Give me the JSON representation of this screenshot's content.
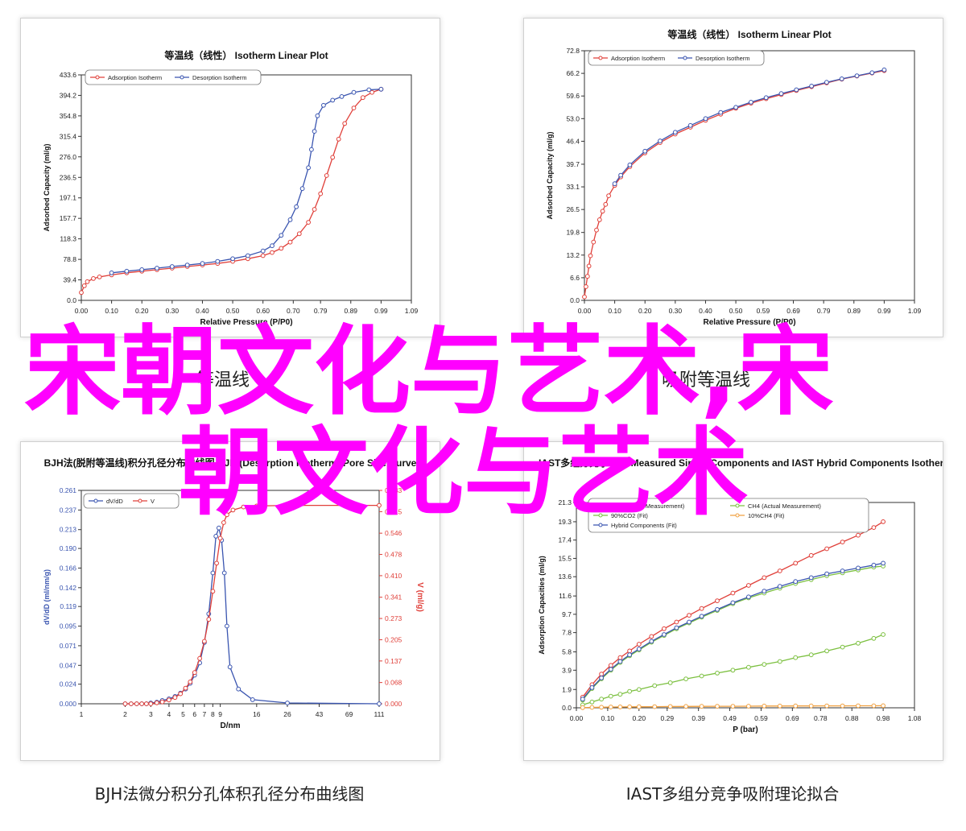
{
  "overlay": {
    "line1": "宋朝文化与艺术,宋",
    "line2": "朝文化与艺术",
    "color": "#ff00ff"
  },
  "captions": {
    "mid_left": "等温线",
    "mid_right": "吸附等温线",
    "bottom_left": "BJH法微分积分孔体积孔径分布曲线图",
    "bottom_right": "IAST多组分竞争吸附理论拟合"
  },
  "chart_data": [
    {
      "type": "line",
      "title": "等温线（线性） Isotherm Linear Plot",
      "xlabel": "Relative Pressure (P/P0)",
      "ylabel": "Adsorbed Capacity (ml/g)",
      "xlim": [
        0.0,
        1.09
      ],
      "ylim": [
        0.0,
        433.6
      ],
      "xticks": [
        "0.00",
        "0.10",
        "0.20",
        "0.30",
        "0.40",
        "0.50",
        "0.60",
        "0.70",
        "0.79",
        "0.89",
        "0.99",
        "1.09"
      ],
      "yticks": [
        "0.0",
        "39.4",
        "78.8",
        "118.3",
        "157.7",
        "197.1",
        "236.5",
        "276.0",
        "315.4",
        "354.8",
        "394.2",
        "433.6"
      ],
      "legend": "top-left",
      "series": [
        {
          "name": "Adsorption Isotherm",
          "color": "#e0403a",
          "x": [
            0.0,
            0.01,
            0.02,
            0.04,
            0.06,
            0.1,
            0.15,
            0.2,
            0.25,
            0.3,
            0.35,
            0.4,
            0.45,
            0.5,
            0.55,
            0.6,
            0.63,
            0.66,
            0.69,
            0.72,
            0.75,
            0.77,
            0.79,
            0.81,
            0.83,
            0.85,
            0.87,
            0.9,
            0.93,
            0.96,
            0.99
          ],
          "y": [
            15,
            28,
            36,
            42,
            45,
            49,
            53,
            56,
            59,
            62,
            65,
            68,
            71,
            75,
            80,
            86,
            92,
            100,
            112,
            128,
            150,
            175,
            205,
            240,
            275,
            310,
            340,
            370,
            390,
            400,
            406
          ]
        },
        {
          "name": "Desorption Isotherm",
          "color": "#3a55b0",
          "x": [
            0.1,
            0.15,
            0.2,
            0.25,
            0.3,
            0.35,
            0.4,
            0.45,
            0.5,
            0.55,
            0.6,
            0.63,
            0.66,
            0.69,
            0.71,
            0.73,
            0.75,
            0.76,
            0.77,
            0.78,
            0.8,
            0.83,
            0.86,
            0.9,
            0.95,
            0.99
          ],
          "y": [
            53,
            56,
            59,
            62,
            65,
            68,
            71,
            75,
            80,
            86,
            95,
            105,
            125,
            155,
            180,
            215,
            255,
            290,
            325,
            355,
            375,
            385,
            392,
            400,
            405,
            406
          ]
        }
      ]
    },
    {
      "type": "line",
      "title": "等温线（线性） Isotherm Linear Plot",
      "xlabel": "Relative Pressure (P/P0)",
      "ylabel": "Adsorbed Capacity (ml/g)",
      "xlim": [
        0.0,
        1.09
      ],
      "ylim": [
        0.0,
        72.8
      ],
      "xticks": [
        "0.00",
        "0.10",
        "0.20",
        "0.30",
        "0.40",
        "0.50",
        "0.59",
        "0.69",
        "0.79",
        "0.89",
        "0.99",
        "1.09"
      ],
      "yticks": [
        "0.0",
        "6.6",
        "13.2",
        "19.8",
        "26.5",
        "33.1",
        "39.7",
        "46.4",
        "53.0",
        "59.6",
        "66.2",
        "72.8"
      ],
      "legend": "top-left",
      "series": [
        {
          "name": "Adsorption Isotherm",
          "color": "#e0403a",
          "x": [
            0.0,
            0.005,
            0.01,
            0.015,
            0.02,
            0.03,
            0.04,
            0.05,
            0.06,
            0.07,
            0.08,
            0.1,
            0.12,
            0.15,
            0.2,
            0.25,
            0.3,
            0.35,
            0.4,
            0.45,
            0.5,
            0.55,
            0.6,
            0.65,
            0.7,
            0.75,
            0.8,
            0.85,
            0.9,
            0.95,
            0.99
          ],
          "y": [
            1,
            4,
            7,
            10,
            13,
            17,
            20.5,
            23.5,
            26,
            28,
            30.5,
            33.5,
            36,
            39,
            43,
            46,
            48.5,
            50.5,
            52.5,
            54.3,
            56,
            57.5,
            58.8,
            60,
            61.2,
            62.3,
            63.4,
            64.5,
            65.4,
            66.3,
            67
          ]
        },
        {
          "name": "Desorption Isotherm",
          "color": "#3a55b0",
          "x": [
            0.1,
            0.12,
            0.15,
            0.2,
            0.25,
            0.3,
            0.35,
            0.4,
            0.45,
            0.5,
            0.55,
            0.6,
            0.65,
            0.7,
            0.75,
            0.8,
            0.85,
            0.9,
            0.95,
            0.99
          ],
          "y": [
            34,
            36.5,
            39.5,
            43.5,
            46.5,
            49,
            51,
            53,
            54.8,
            56.3,
            57.8,
            59.1,
            60.3,
            61.4,
            62.5,
            63.6,
            64.6,
            65.5,
            66.4,
            67.2
          ]
        }
      ]
    },
    {
      "type": "line",
      "title": "BJH法(脱附等温线)积分孔径分布曲线图 BJH (Desorption Isotherm) Pore Size Curve",
      "xlabel": "D/nm",
      "ylabel": "dV/dD (ml/nm/g)",
      "ylabel2": "V (ml/g)",
      "xscale": "log",
      "xlim": [
        1,
        111
      ],
      "xticks": [
        "1",
        "2",
        "3",
        "4",
        "5",
        "6",
        "7",
        "8",
        "9",
        "16",
        "26",
        "43",
        "69",
        "111"
      ],
      "ylim": [
        0.0,
        0.261
      ],
      "yticks": [
        "0.000",
        "0.024",
        "0.047",
        "0.071",
        "0.095",
        "0.119",
        "0.142",
        "0.166",
        "0.190",
        "0.213",
        "0.237",
        "0.261"
      ],
      "ylim2": [
        0.0,
        0.683
      ],
      "yticks2": [
        "0.000",
        "0.068",
        "0.137",
        "0.205",
        "0.273",
        "0.341",
        "0.410",
        "0.478",
        "0.546",
        "0.615",
        "0.683"
      ],
      "legend": "top-left",
      "series": [
        {
          "name": "dV/dD",
          "color": "#3a55b0",
          "axis": "left",
          "x": [
            2,
            2.2,
            2.4,
            2.6,
            2.8,
            3,
            3.3,
            3.6,
            4,
            4.4,
            4.8,
            5.2,
            5.6,
            6,
            6.5,
            7,
            7.5,
            8,
            8.4,
            8.8,
            9.2,
            9.6,
            10,
            10.5,
            12,
            15,
            26,
            111
          ],
          "y": [
            0,
            0,
            0,
            0,
            0,
            0.001,
            0.002,
            0.004,
            0.006,
            0.009,
            0.013,
            0.018,
            0.025,
            0.035,
            0.05,
            0.075,
            0.11,
            0.16,
            0.205,
            0.215,
            0.2,
            0.16,
            0.095,
            0.045,
            0.018,
            0.005,
            0.001,
            0
          ]
        },
        {
          "name": "V",
          "color": "#e0403a",
          "axis": "right",
          "x": [
            2,
            2.2,
            2.4,
            2.6,
            2.8,
            3,
            3.3,
            3.6,
            4,
            4.4,
            4.8,
            5.2,
            5.6,
            6,
            6.5,
            7,
            7.5,
            8,
            8.5,
            9,
            9.5,
            10,
            11,
            13,
            16,
            26,
            111
          ],
          "y": [
            0,
            0,
            0,
            0,
            0,
            0,
            0.003,
            0.006,
            0.012,
            0.02,
            0.032,
            0.05,
            0.07,
            0.1,
            0.145,
            0.2,
            0.27,
            0.36,
            0.45,
            0.53,
            0.58,
            0.605,
            0.62,
            0.63,
            0.633,
            0.635,
            0.635
          ]
        }
      ]
    },
    {
      "type": "line",
      "title": "IAST多组分竞争吸附 Measured Single Components and IAST Hybrid Components Isotherm",
      "xlabel": "P (bar)",
      "ylabel": "Adsorption Capacities (ml/g)",
      "xlim": [
        0.0,
        1.08
      ],
      "xticks": [
        "0.00",
        "0.10",
        "0.20",
        "0.29",
        "0.39",
        "0.49",
        "0.59",
        "0.69",
        "0.78",
        "0.88",
        "0.98",
        "1.08"
      ],
      "ylim": [
        0.0,
        21.3
      ],
      "yticks": [
        "0.0",
        "1.9",
        "3.9",
        "5.8",
        "7.8",
        "9.7",
        "11.6",
        "13.6",
        "15.5",
        "17.4",
        "19.3",
        "21.3"
      ],
      "legend": "top-left",
      "series": [
        {
          "name": "CO2 (Actual Measurement)",
          "color": "#e0403a",
          "x": [
            0.02,
            0.05,
            0.08,
            0.11,
            0.14,
            0.17,
            0.2,
            0.24,
            0.28,
            0.32,
            0.36,
            0.4,
            0.45,
            0.5,
            0.55,
            0.6,
            0.65,
            0.7,
            0.75,
            0.8,
            0.85,
            0.9,
            0.95,
            0.98
          ],
          "y": [
            1.1,
            2.4,
            3.5,
            4.4,
            5.2,
            5.9,
            6.6,
            7.4,
            8.2,
            8.9,
            9.6,
            10.3,
            11.1,
            11.9,
            12.7,
            13.5,
            14.2,
            15.0,
            15.8,
            16.5,
            17.2,
            17.9,
            18.7,
            19.3
          ]
        },
        {
          "name": "CH4 (Actual Measurement)",
          "color": "#7cc040",
          "x": [
            0.02,
            0.05,
            0.08,
            0.11,
            0.14,
            0.17,
            0.2,
            0.25,
            0.3,
            0.35,
            0.4,
            0.45,
            0.5,
            0.55,
            0.6,
            0.65,
            0.7,
            0.75,
            0.8,
            0.85,
            0.9,
            0.95,
            0.98
          ],
          "y": [
            0.3,
            0.6,
            0.9,
            1.2,
            1.4,
            1.7,
            1.9,
            2.3,
            2.6,
            3.0,
            3.3,
            3.6,
            3.9,
            4.2,
            4.5,
            4.8,
            5.2,
            5.5,
            5.9,
            6.3,
            6.7,
            7.2,
            7.6
          ]
        },
        {
          "name": "90%CO2 (Fit)",
          "color": "#7cc040",
          "x": [
            0.02,
            0.05,
            0.08,
            0.11,
            0.14,
            0.17,
            0.2,
            0.24,
            0.28,
            0.32,
            0.36,
            0.4,
            0.45,
            0.5,
            0.55,
            0.6,
            0.65,
            0.7,
            0.75,
            0.8,
            0.85,
            0.9,
            0.95,
            0.98
          ],
          "y": [
            0.8,
            2.0,
            3.0,
            3.9,
            4.7,
            5.4,
            6.0,
            6.8,
            7.5,
            8.2,
            8.8,
            9.4,
            10.1,
            10.8,
            11.4,
            11.9,
            12.4,
            12.9,
            13.3,
            13.7,
            14.0,
            14.3,
            14.6,
            14.7
          ]
        },
        {
          "name": "10%CH4 (Fit)",
          "color": "#f0a040",
          "x": [
            0.02,
            0.05,
            0.08,
            0.11,
            0.14,
            0.17,
            0.2,
            0.25,
            0.3,
            0.35,
            0.4,
            0.45,
            0.5,
            0.55,
            0.6,
            0.65,
            0.7,
            0.75,
            0.8,
            0.85,
            0.9,
            0.95,
            0.98
          ],
          "y": [
            0.02,
            0.04,
            0.06,
            0.08,
            0.09,
            0.1,
            0.11,
            0.12,
            0.13,
            0.14,
            0.15,
            0.16,
            0.16,
            0.17,
            0.18,
            0.18,
            0.19,
            0.19,
            0.2,
            0.2,
            0.21,
            0.21,
            0.22
          ]
        },
        {
          "name": "Hybrid Components (Fit)",
          "color": "#3a55b0",
          "x": [
            0.02,
            0.05,
            0.08,
            0.11,
            0.14,
            0.17,
            0.2,
            0.24,
            0.28,
            0.32,
            0.36,
            0.4,
            0.45,
            0.5,
            0.55,
            0.6,
            0.65,
            0.7,
            0.75,
            0.8,
            0.85,
            0.9,
            0.95,
            0.98
          ],
          "y": [
            0.9,
            2.1,
            3.1,
            4.0,
            4.8,
            5.5,
            6.1,
            6.9,
            7.6,
            8.3,
            8.9,
            9.5,
            10.2,
            10.9,
            11.5,
            12.1,
            12.6,
            13.1,
            13.5,
            13.9,
            14.2,
            14.5,
            14.8,
            15.0
          ]
        }
      ]
    }
  ]
}
